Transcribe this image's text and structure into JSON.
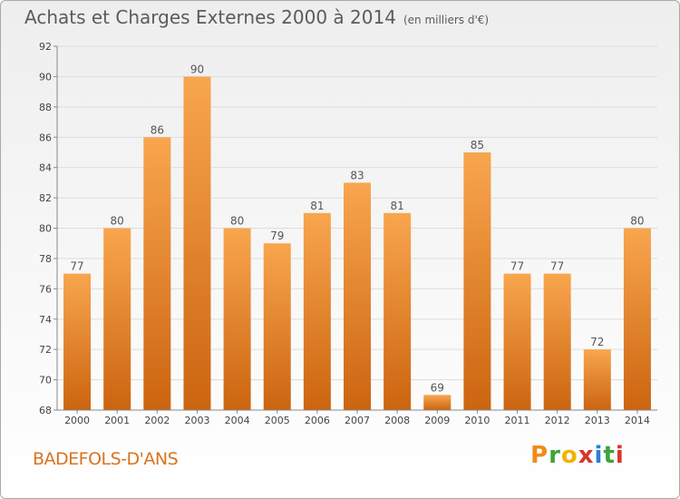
{
  "title": "Achats et Charges Externes 2000 à 2014",
  "subtitle": "(en milliers d'€)",
  "commune": "BADEFOLS-D'ANS",
  "logo": {
    "letters": [
      "P",
      "r",
      "o",
      "x",
      "i",
      "t",
      "i"
    ],
    "colors": [
      "#f08a1c",
      "#3fa23a",
      "#f0b400",
      "#d8352a",
      "#2a7fd4",
      "#3fa23a",
      "#d8352a"
    ]
  },
  "colors": {
    "bar_top": "#f8a64e",
    "bar_bottom": "#cc6410",
    "grid": "#dddddd",
    "axis": "#888888"
  },
  "chart_data": {
    "type": "bar",
    "title": "Achats et Charges Externes 2000 à 2014",
    "subtitle": "(en milliers d'€)",
    "xlabel": "",
    "ylabel": "",
    "categories": [
      "2000",
      "2001",
      "2002",
      "2003",
      "2004",
      "2005",
      "2006",
      "2007",
      "2008",
      "2009",
      "2010",
      "2011",
      "2012",
      "2013",
      "2014"
    ],
    "values": [
      77,
      80,
      86,
      90,
      80,
      79,
      81,
      83,
      81,
      69,
      85,
      77,
      77,
      72,
      80
    ],
    "ylim": [
      68,
      92
    ],
    "yticks": [
      68,
      70,
      72,
      74,
      76,
      78,
      80,
      82,
      84,
      86,
      88,
      90,
      92
    ],
    "grid": true,
    "legend": "none"
  }
}
